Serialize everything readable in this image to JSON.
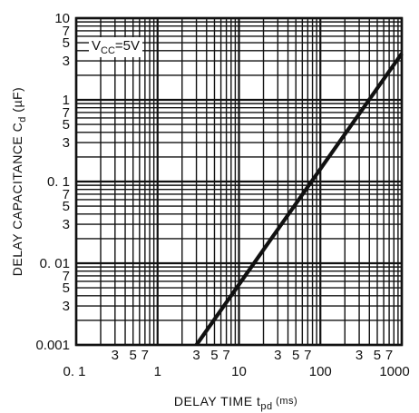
{
  "chart_data": {
    "type": "line",
    "x_scale": "log",
    "y_scale": "log",
    "xlim": [
      0.1,
      1000
    ],
    "ylim": [
      0.001,
      10
    ],
    "grid": true,
    "xlabel": {
      "main": "DELAY TIME  t",
      "sub": "pd",
      "unit": " (ms)"
    },
    "ylabel": {
      "main": "DELAY CAPACITANCE  C",
      "sub": "d",
      "unit": " (µF)"
    },
    "annotation": {
      "main": "V",
      "sub": "CC",
      "rest": "=5V"
    },
    "x_decade_labels": [
      "0. 1",
      "1",
      "10",
      "100",
      "1000"
    ],
    "x_minor_labels": [
      "3",
      "5",
      "7"
    ],
    "y_decade_labels": [
      "0.001",
      "0. 01",
      "0. 1",
      "1",
      "10"
    ],
    "y_minor_labels": [
      "3",
      "5",
      "7"
    ],
    "series": [
      {
        "x": [
          3,
          1000
        ],
        "y": [
          0.001,
          3.7
        ]
      }
    ]
  }
}
